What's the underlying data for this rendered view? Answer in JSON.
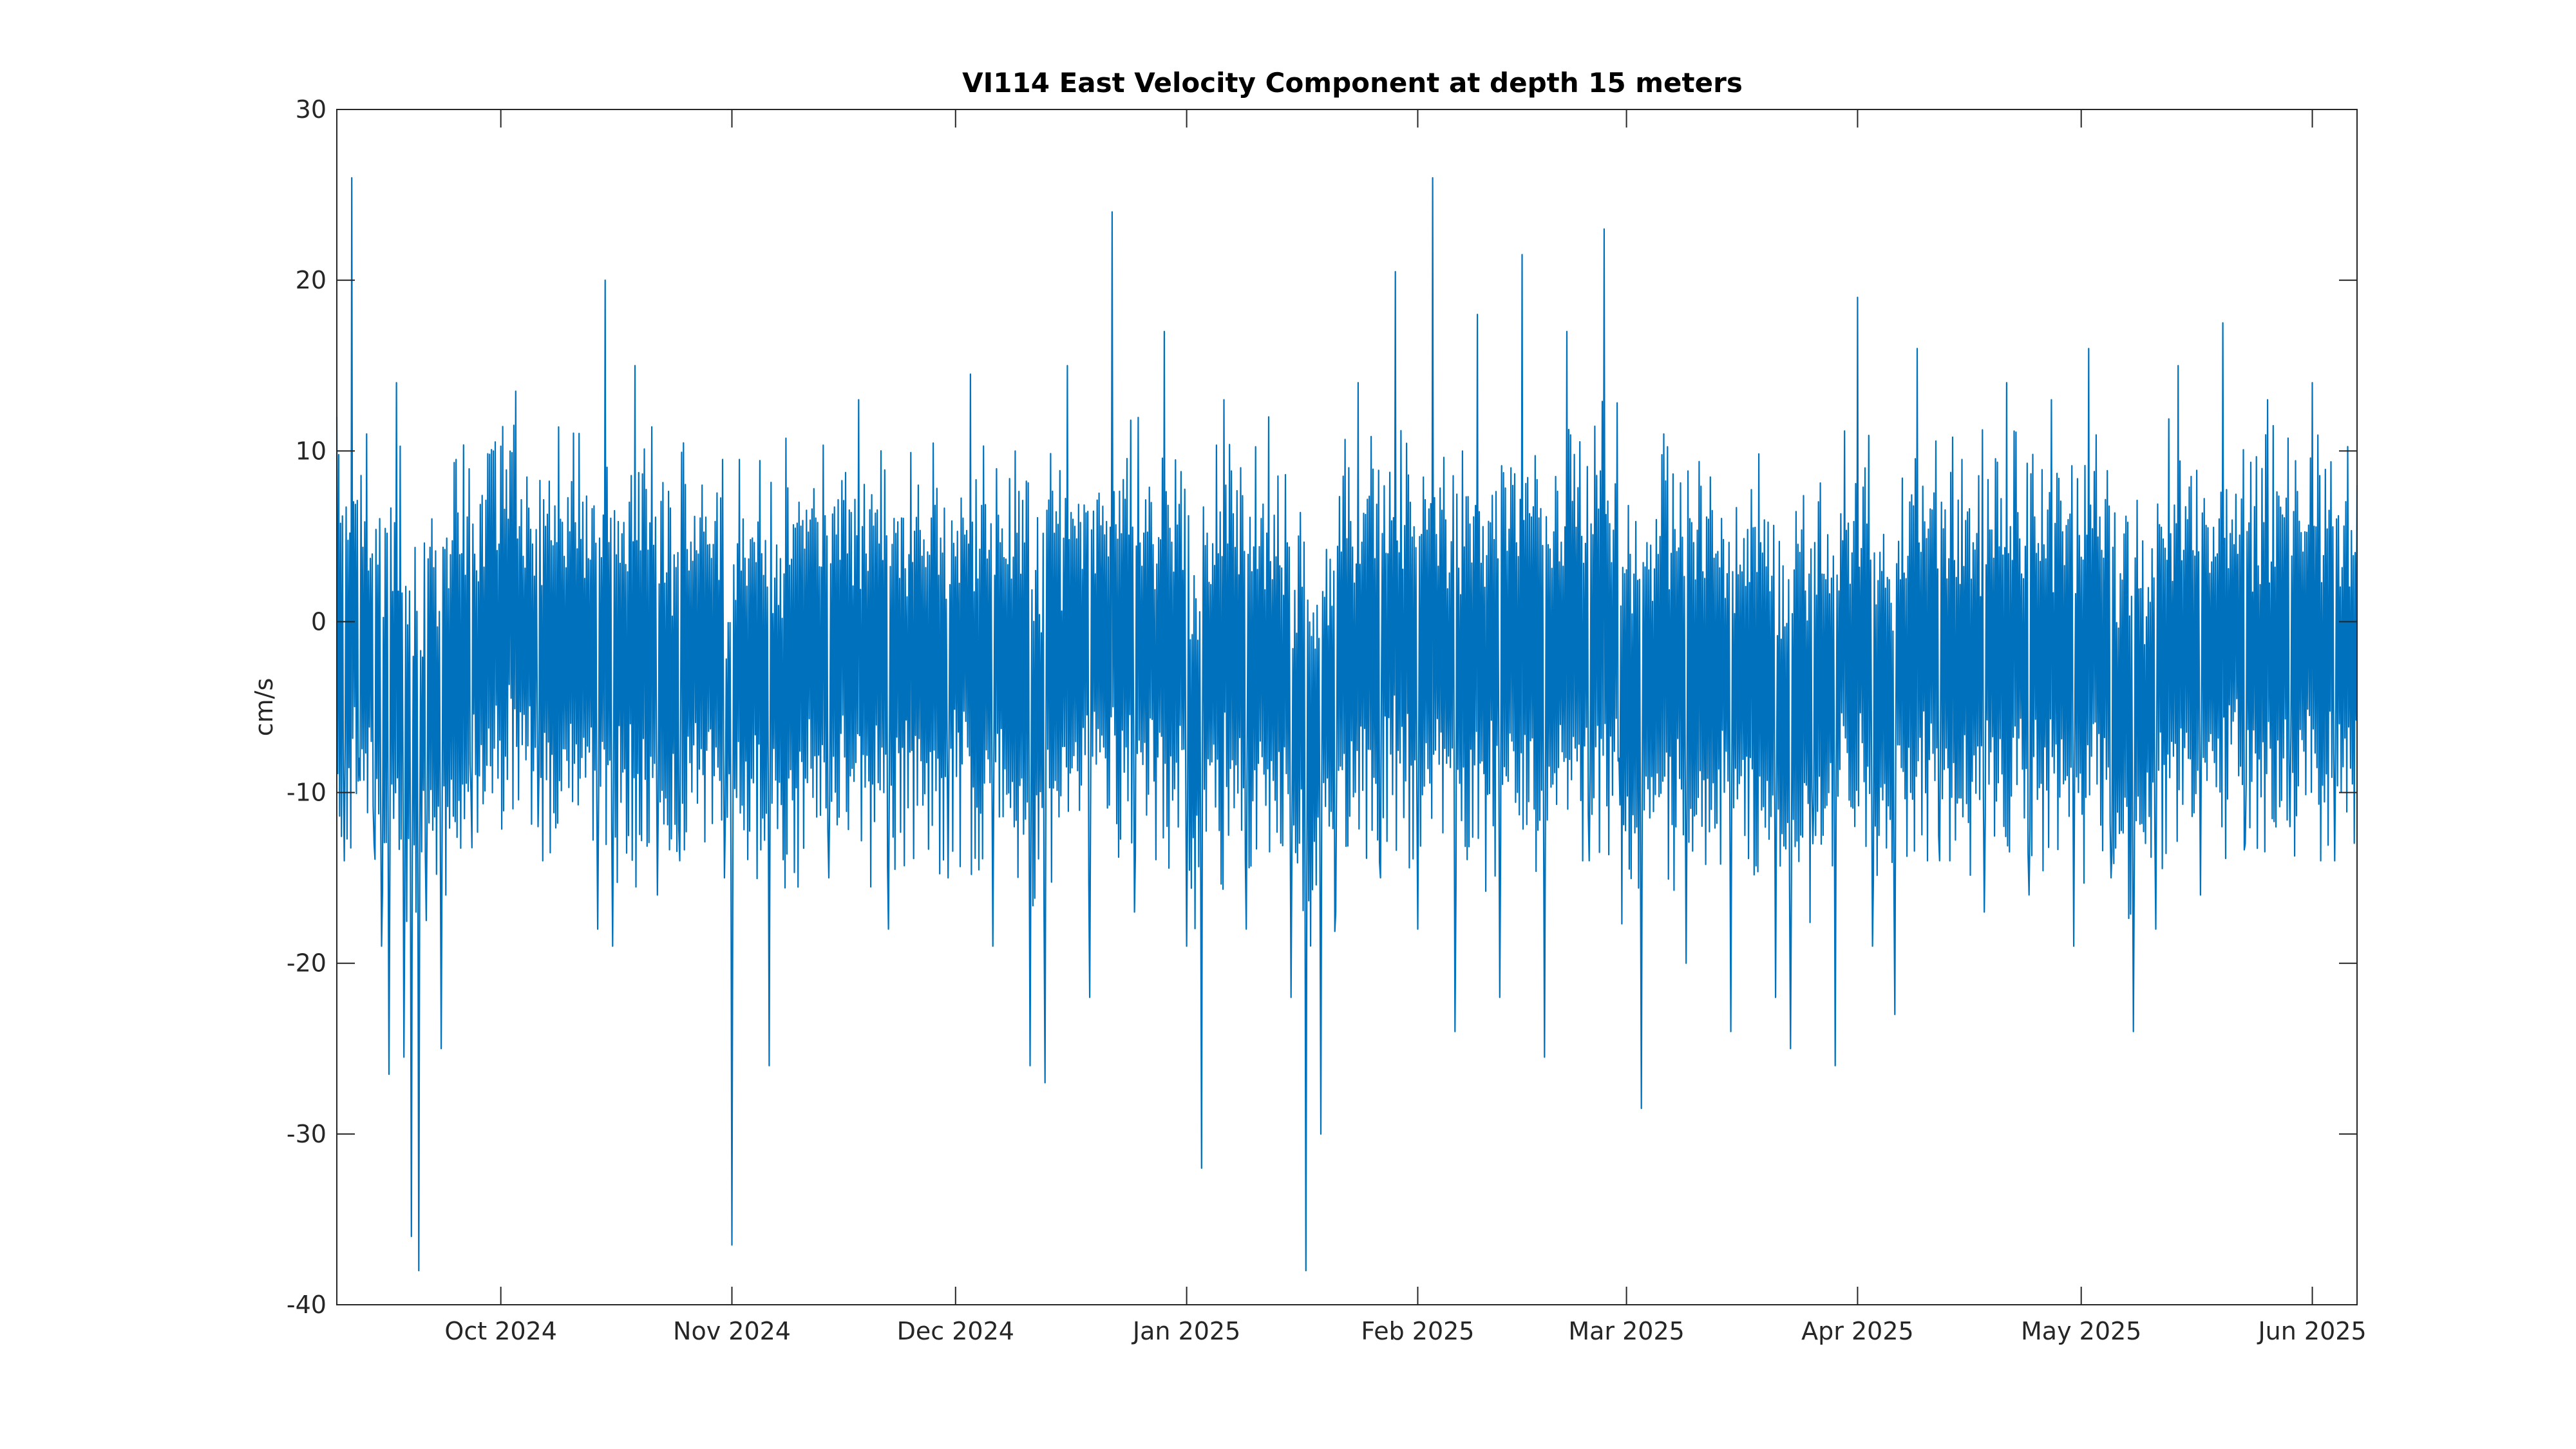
{
  "chart_data": {
    "type": "line",
    "title": "VI114 East Velocity Component at depth 15 meters",
    "xlabel": "",
    "ylabel": "cm/s",
    "xlim": [
      "2024-09-09",
      "2025-06-07"
    ],
    "ylim": [
      -40,
      30
    ],
    "x_ticks": [
      {
        "date": "2024-10-01",
        "label": "Oct 2024"
      },
      {
        "date": "2024-11-01",
        "label": "Nov 2024"
      },
      {
        "date": "2024-12-01",
        "label": "Dec 2024"
      },
      {
        "date": "2025-01-01",
        "label": "Jan 2025"
      },
      {
        "date": "2025-02-01",
        "label": "Feb 2025"
      },
      {
        "date": "2025-03-01",
        "label": "Mar 2025"
      },
      {
        "date": "2025-04-01",
        "label": "Apr 2025"
      },
      {
        "date": "2025-05-01",
        "label": "May 2025"
      },
      {
        "date": "2025-06-01",
        "label": "Jun 2025"
      }
    ],
    "y_ticks": [
      30,
      20,
      10,
      0,
      -10,
      -20,
      -30,
      -40
    ],
    "grid": false,
    "line_color": "#0072BD",
    "series": [
      {
        "x": [
          "2024-09-09",
          "2024-09-10",
          "2024-09-11",
          "2024-09-12",
          "2024-09-13",
          "2024-09-14",
          "2024-09-15",
          "2024-09-16",
          "2024-09-17",
          "2024-09-18",
          "2024-09-19",
          "2024-09-20",
          "2024-09-21",
          "2024-09-23",
          "2024-09-25",
          "2024-09-27",
          "2024-09-30",
          "2024-10-03",
          "2024-10-06",
          "2024-10-09",
          "2024-10-12",
          "2024-10-14",
          "2024-10-15",
          "2024-10-16",
          "2024-10-19",
          "2024-10-22",
          "2024-10-25",
          "2024-10-28",
          "2024-10-31",
          "2024-11-01",
          "2024-11-02",
          "2024-11-06",
          "2024-11-10",
          "2024-11-14",
          "2024-11-18",
          "2024-11-22",
          "2024-11-26",
          "2024-11-30",
          "2024-12-03",
          "2024-12-06",
          "2024-12-09",
          "2024-12-11",
          "2024-12-13",
          "2024-12-16",
          "2024-12-19",
          "2024-12-22",
          "2024-12-25",
          "2024-12-29",
          "2025-01-01",
          "2025-01-03",
          "2025-01-06",
          "2025-01-09",
          "2025-01-12",
          "2025-01-15",
          "2025-01-17",
          "2025-01-19",
          "2025-01-21",
          "2025-01-24",
          "2025-01-27",
          "2025-01-29",
          "2025-02-01",
          "2025-02-03",
          "2025-02-06",
          "2025-02-09",
          "2025-02-12",
          "2025-02-15",
          "2025-02-18",
          "2025-02-21",
          "2025-02-24",
          "2025-02-26",
          "2025-02-28",
          "2025-03-03",
          "2025-03-06",
          "2025-03-09",
          "2025-03-12",
          "2025-03-15",
          "2025-03-18",
          "2025-03-21",
          "2025-03-23",
          "2025-03-26",
          "2025-03-29",
          "2025-04-01",
          "2025-04-03",
          "2025-04-06",
          "2025-04-09",
          "2025-04-12",
          "2025-04-15",
          "2025-04-18",
          "2025-04-21",
          "2025-04-24",
          "2025-04-27",
          "2025-04-30",
          "2025-05-02",
          "2025-05-05",
          "2025-05-08",
          "2025-05-11",
          "2025-05-14",
          "2025-05-17",
          "2025-05-20",
          "2025-05-23",
          "2025-05-26",
          "2025-05-29",
          "2025-06-01",
          "2025-06-04",
          "2025-06-07"
        ],
        "y": [
          12,
          -14,
          26,
          -8,
          11,
          -13,
          -19,
          -26.5,
          14,
          -25.5,
          -36,
          -38,
          -17.5,
          -25,
          9.5,
          -10,
          10,
          13.5,
          -12,
          6,
          7,
          -18,
          20,
          -19,
          15,
          -16,
          -14,
          8,
          -15,
          -36.5,
          9.5,
          -26,
          7,
          -15,
          13,
          -18,
          8,
          -15,
          14.5,
          -19,
          10,
          -26,
          -27,
          15,
          -22,
          24,
          -17,
          17,
          -19,
          -32,
          13,
          -18,
          12,
          -22,
          -38,
          -30,
          -17,
          14,
          -15,
          20.5,
          -18,
          26,
          -24,
          18,
          -22,
          21.5,
          -25.5,
          17,
          -14,
          23,
          -8,
          -28.5,
          11,
          -20,
          6,
          -24,
          5.5,
          -22,
          -25,
          -13,
          -26,
          19,
          -19,
          -23,
          16,
          -14,
          9.5,
          -17,
          14,
          -16,
          13,
          -19,
          16,
          -15,
          -24,
          -18,
          15,
          -16,
          17.5,
          -13,
          13,
          -12,
          14,
          -14,
          8
        ]
      }
    ]
  }
}
